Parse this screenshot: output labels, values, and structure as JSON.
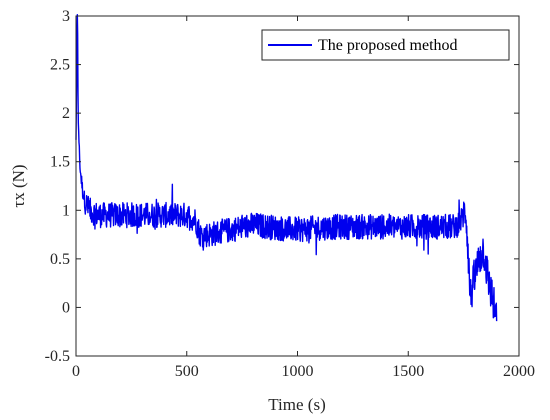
{
  "chart_data": {
    "type": "line",
    "title": "",
    "xlabel": "Time (s)",
    "ylabel": "τx (N)",
    "xlim": [
      0,
      2000
    ],
    "ylim": [
      -0.5,
      3
    ],
    "xticks": [
      "0",
      "500",
      "1000",
      "1500",
      "2000"
    ],
    "yticks": [
      "-0.5",
      "0",
      "0.5",
      "1",
      "1.5",
      "2",
      "2.5",
      "3"
    ],
    "grid": false,
    "legend_position": "top-right",
    "series": [
      {
        "name": "The proposed method",
        "color": "#0000ee",
        "x": [
          0,
          5,
          10,
          15,
          20,
          30,
          40,
          60,
          100,
          150,
          200,
          300,
          400,
          500,
          540,
          560,
          600,
          700,
          800,
          900,
          1000,
          1100,
          1200,
          1300,
          1400,
          1500,
          1600,
          1700,
          1720,
          1740,
          1760,
          1770,
          1780,
          1790,
          1800,
          1820,
          1840,
          1860,
          1880,
          1900
        ],
        "y": [
          1.7,
          2.8,
          2.0,
          1.6,
          1.4,
          1.2,
          1.1,
          1.0,
          0.95,
          0.95,
          0.95,
          0.95,
          0.95,
          0.95,
          0.9,
          0.75,
          0.75,
          0.8,
          0.85,
          0.82,
          0.8,
          0.82,
          0.83,
          0.83,
          0.83,
          0.83,
          0.83,
          0.83,
          0.85,
          0.9,
          1.0,
          0.6,
          0.1,
          0.2,
          0.3,
          0.5,
          0.6,
          0.3,
          0.1,
          -0.15
        ]
      }
    ]
  }
}
